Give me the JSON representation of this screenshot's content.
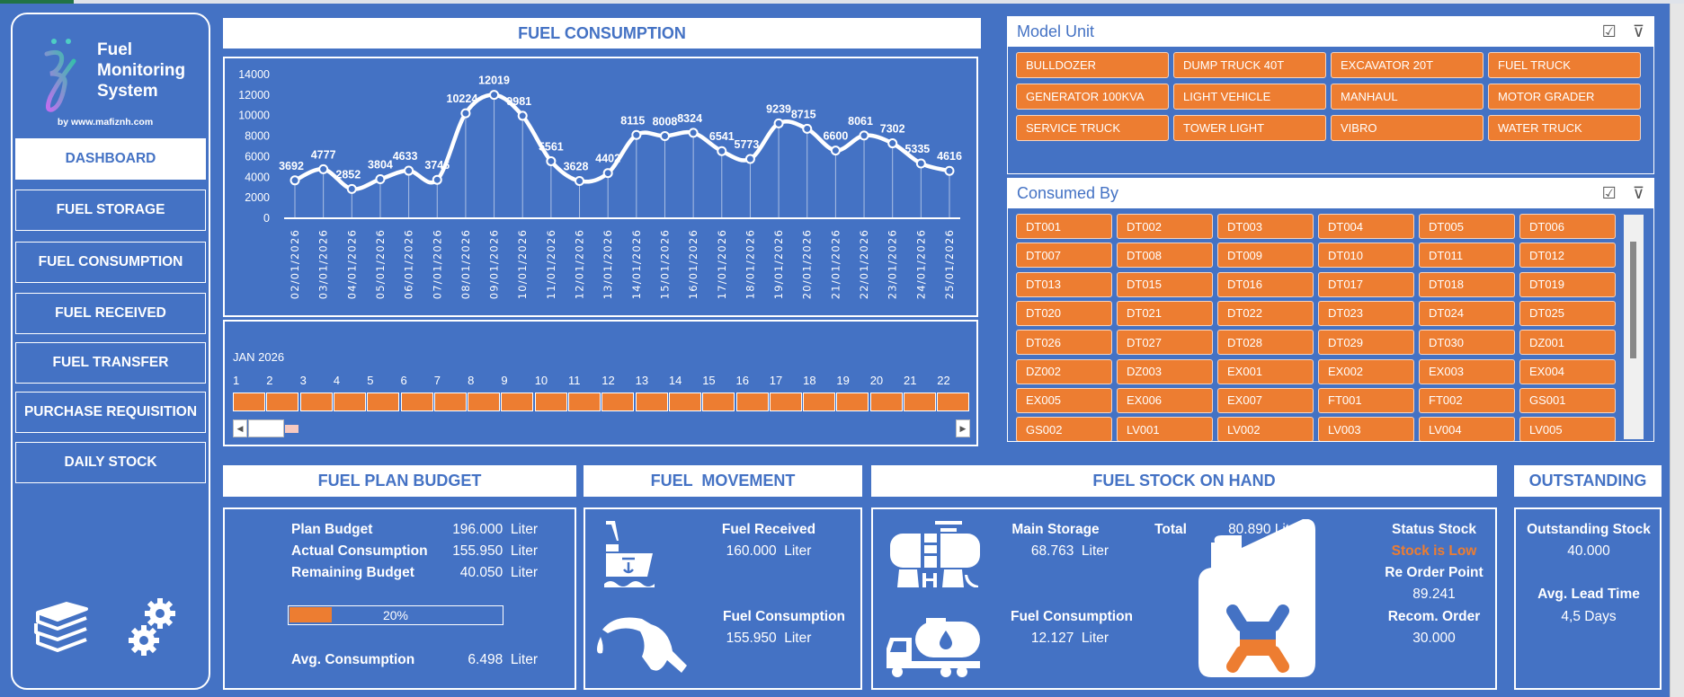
{
  "app": {
    "title_line1": "Fuel",
    "title_line2": "Monitoring",
    "title_line3": "System",
    "byline": "by www.mafiznh.com"
  },
  "nav": [
    {
      "label": "DASHBOARD",
      "active": true
    },
    {
      "label": "FUEL STORAGE"
    },
    {
      "label": "FUEL CONSUMPTION"
    },
    {
      "label": "FUEL RECEIVED"
    },
    {
      "label": "FUEL TRANSFER"
    },
    {
      "label": "PURCHASE REQUISITION"
    },
    {
      "label": "DAILY STOCK"
    }
  ],
  "colors": {
    "background": "#4472C4",
    "accent": "#ED7D31",
    "white": "#FFFFFF"
  },
  "chart_title": "FUEL CONSUMPTION",
  "chart_data": {
    "type": "line",
    "smooth": true,
    "x": [
      "02/01/2026",
      "03/01/2026",
      "04/01/2026",
      "05/01/2026",
      "06/01/2026",
      "07/01/2026",
      "08/01/2026",
      "09/01/2026",
      "10/01/2026",
      "11/01/2026",
      "12/01/2026",
      "13/01/2026",
      "14/01/2026",
      "15/01/2026",
      "16/01/2026",
      "17/01/2026",
      "18/01/2026",
      "19/01/2026",
      "20/01/2026",
      "21/01/2026",
      "22/01/2026",
      "23/01/2026",
      "24/01/2026",
      "25/01/2026"
    ],
    "values": [
      3692,
      4777,
      2852,
      3804,
      4633,
      3746,
      10224,
      12019,
      9981,
      5561,
      3628,
      4402,
      8115,
      8008,
      8324,
      6541,
      5773,
      9239,
      8715,
      6600,
      8061,
      7302,
      5335,
      4616
    ],
    "ylim": [
      0,
      14000
    ],
    "yticks": [
      0,
      2000,
      4000,
      6000,
      8000,
      10000,
      12000,
      14000
    ],
    "grid": false,
    "data_labels": true
  },
  "timeline": {
    "period": "JAN 2026",
    "days": [
      "1",
      "2",
      "3",
      "4",
      "5",
      "6",
      "7",
      "8",
      "9",
      "10",
      "11",
      "12",
      "13",
      "14",
      "15",
      "16",
      "17",
      "18",
      "19",
      "20",
      "21",
      "22"
    ]
  },
  "model_unit": {
    "title": "Model Unit",
    "items": [
      "BULLDOZER",
      "DUMP TRUCK 40T",
      "EXCAVATOR 20T",
      "FUEL TRUCK",
      "GENERATOR 100KVA",
      "LIGHT VEHICLE",
      "MANHAUL",
      "MOTOR GRADER",
      "SERVICE TRUCK",
      "TOWER LIGHT",
      "VIBRO",
      "WATER TRUCK"
    ]
  },
  "consumed_by": {
    "title": "Consumed By",
    "items": [
      "DT001",
      "DT002",
      "DT003",
      "DT004",
      "DT005",
      "DT006",
      "DT007",
      "DT008",
      "DT009",
      "DT010",
      "DT011",
      "DT012",
      "DT013",
      "DT015",
      "DT016",
      "DT017",
      "DT018",
      "DT019",
      "DT020",
      "DT021",
      "DT022",
      "DT023",
      "DT024",
      "DT025",
      "DT026",
      "DT027",
      "DT028",
      "DT029",
      "DT030",
      "DZ001",
      "DZ002",
      "DZ003",
      "EX001",
      "EX002",
      "EX003",
      "EX004",
      "EX005",
      "EX006",
      "EX007",
      "FT001",
      "FT002",
      "GS001",
      "GS002",
      "LV001",
      "LV002",
      "LV003",
      "LV004",
      "LV005"
    ]
  },
  "plan_budget": {
    "title": "FUEL PLAN BUDGET",
    "rows": [
      {
        "label": "Plan Budget",
        "value": "196.000",
        "unit": "Liter"
      },
      {
        "label": "Actual Consumption",
        "value": "155.950",
        "unit": "Liter"
      },
      {
        "label": "Remaining Budget",
        "value": "40.050",
        "unit": "Liter"
      }
    ],
    "progress_label": "20%",
    "progress_fraction": 0.2,
    "avg_label": "Avg. Consumption",
    "avg_value": "6.498",
    "avg_unit": "Liter"
  },
  "movement": {
    "title": "FUEL  MOVEMENT",
    "received_label": "Fuel Received",
    "received_value": "160.000  Liter",
    "consumption_label": "Fuel Consumption",
    "consumption_value": "155.950  Liter"
  },
  "stock": {
    "title": "FUEL STOCK ON HAND",
    "main_label": "Main Storage",
    "main_value": "68.763  Liter",
    "cons_label": "Fuel Consumption",
    "cons_value": "12.127  Liter",
    "total_label": "Total",
    "total_value": "80.890 Liter",
    "status_label": "Status Stock",
    "status_value": "Stock is Low",
    "rop_label": "Re Order Point",
    "rop_value": "89.241",
    "recom_label": "Recom. Order",
    "recom_value": "30.000"
  },
  "outstanding": {
    "title": "OUTSTANDING",
    "stock_label": "Outstanding Stock",
    "stock_value": "40.000",
    "lead_label": "Avg. Lead Time",
    "lead_value": "4,5 Days"
  }
}
